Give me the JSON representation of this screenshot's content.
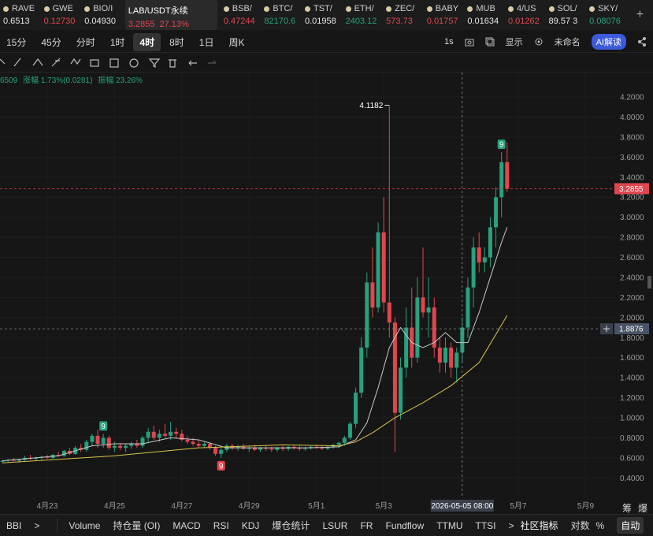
{
  "tickers": [
    {
      "symbol": "RAVE",
      "price": "0.6513",
      "color": "#e6e6e6"
    },
    {
      "symbol": "GWE",
      "price": "0.12730",
      "color": "#e0464f"
    },
    {
      "symbol": "BIO/I",
      "price": "0.04930",
      "color": "#e6e6e6"
    },
    {
      "symbol": "LAB/USDT永续",
      "price": "3.2855",
      "change": "27.13%",
      "color": "#e0464f"
    },
    {
      "symbol": "BSB/",
      "price": "0.47244",
      "color": "#e0464f"
    },
    {
      "symbol": "BTC/",
      "price": "82170.6",
      "color": "#27a17e"
    },
    {
      "symbol": "TST/",
      "price": "0.01958",
      "color": "#e6e6e6"
    },
    {
      "symbol": "ETH/",
      "price": "2403.12",
      "color": "#27a17e"
    },
    {
      "symbol": "ZEC/",
      "price": "573.73",
      "color": "#e0464f"
    },
    {
      "symbol": "BABY",
      "price": "0.01757",
      "color": "#e0464f"
    },
    {
      "symbol": "MUB",
      "price": "0.01634",
      "color": "#e6e6e6"
    },
    {
      "symbol": "4/US",
      "price": "0.01262",
      "color": "#e0464f"
    },
    {
      "symbol": "SOL/",
      "price": "89.57 3",
      "color": "#e6e6e6"
    },
    {
      "symbol": "SKY/",
      "price": "0.08076",
      "color": "#27a17e"
    }
  ],
  "add_tab": "+",
  "intervals": [
    "15分",
    "45分",
    "分时",
    "1时",
    "4时",
    "8时",
    "1日",
    "周K"
  ],
  "selected_interval": 4,
  "toolbar_right": {
    "speed": "1s",
    "display": "显示",
    "layout": "未命名",
    "ai": "AI解读"
  },
  "info": {
    "left": "6509",
    "change": "涨幅 1.73%(0.0281)",
    "amplitude": "振幅 23.26%"
  },
  "chart": {
    "up_color": "#27a17e",
    "down_color": "#e0464f",
    "ylim": [
      0.3,
      4.35
    ],
    "yticks": [
      {
        "value": 0.4,
        "label": "0.4000"
      },
      {
        "value": 0.6,
        "label": "0.6000"
      },
      {
        "value": 0.8,
        "label": "0.8000"
      },
      {
        "value": 1.0,
        "label": "1.0000"
      },
      {
        "value": 1.2,
        "label": "1.2000"
      },
      {
        "value": 1.4,
        "label": "1.4000"
      },
      {
        "value": 1.6,
        "label": "1.6000"
      },
      {
        "value": 1.8,
        "label": "1.8000"
      },
      {
        "value": 2.0,
        "label": "2.0000"
      },
      {
        "value": 2.2,
        "label": "2.2000"
      },
      {
        "value": 2.4,
        "label": "2.4000"
      },
      {
        "value": 2.6,
        "label": "2.6000"
      },
      {
        "value": 2.8,
        "label": "2.8000"
      },
      {
        "value": 3.0,
        "label": "3.0000"
      },
      {
        "value": 3.2,
        "label": "3.2000"
      },
      {
        "value": 3.4,
        "label": "3.4000"
      },
      {
        "value": 3.6,
        "label": "3.6000"
      },
      {
        "value": 3.8,
        "label": "3.8000"
      },
      {
        "value": 4.0,
        "label": "4.0000"
      },
      {
        "value": 4.2,
        "label": "4.2000"
      }
    ],
    "xticks": [
      {
        "value": 8,
        "label": "4月23"
      },
      {
        "value": 20,
        "label": "4月25"
      },
      {
        "value": 32,
        "label": "4月27"
      },
      {
        "value": 44,
        "label": "4月29"
      },
      {
        "value": 56,
        "label": "5月1"
      },
      {
        "value": 68,
        "label": "5月3"
      },
      {
        "value": 92,
        "label": "5月7"
      },
      {
        "value": 104,
        "label": "5月9"
      }
    ],
    "candles": {
      "open": [
        0.56,
        0.57,
        0.58,
        0.57,
        0.58,
        0.6,
        0.59,
        0.6,
        0.61,
        0.6,
        0.63,
        0.62,
        0.67,
        0.64,
        0.7,
        0.68,
        0.76,
        0.82,
        0.74,
        0.8,
        0.7,
        0.72,
        0.7,
        0.72,
        0.74,
        0.72,
        0.8,
        0.86,
        0.8,
        0.84,
        0.82,
        0.86,
        0.84,
        0.78,
        0.76,
        0.74,
        0.72,
        0.74,
        0.7,
        0.64,
        0.68,
        0.72,
        0.7,
        0.71,
        0.69,
        0.7,
        0.68,
        0.7,
        0.69,
        0.68,
        0.7,
        0.69,
        0.71,
        0.7,
        0.69,
        0.7,
        0.71,
        0.7,
        0.69,
        0.71,
        0.73,
        0.75,
        0.8,
        0.94,
        1.25,
        1.7,
        2.35,
        2.1,
        2.85,
        2.15,
        1.95,
        1.05,
        1.5,
        1.9,
        1.6,
        2.2,
        2.05,
        2.1,
        1.7,
        1.55,
        1.7,
        1.5,
        1.65,
        1.9,
        2.3,
        2.7,
        2.55,
        2.6,
        2.9,
        3.2,
        3.55
      ],
      "high": [
        0.58,
        0.59,
        0.6,
        0.59,
        0.62,
        0.63,
        0.61,
        0.62,
        0.63,
        0.64,
        0.66,
        0.68,
        0.7,
        0.72,
        0.74,
        0.78,
        0.84,
        0.88,
        0.84,
        0.82,
        0.76,
        0.75,
        0.74,
        0.76,
        0.78,
        0.82,
        0.9,
        0.92,
        0.88,
        0.94,
        0.96,
        0.9,
        0.88,
        0.82,
        0.8,
        0.78,
        0.76,
        0.76,
        0.72,
        0.7,
        0.74,
        0.74,
        0.73,
        0.74,
        0.72,
        0.73,
        0.71,
        0.72,
        0.71,
        0.71,
        0.72,
        0.72,
        0.73,
        0.72,
        0.71,
        0.72,
        0.73,
        0.72,
        0.72,
        0.74,
        0.76,
        0.82,
        0.96,
        1.3,
        1.8,
        2.45,
        2.7,
        2.95,
        3.2,
        4.1182,
        2.0,
        1.6,
        2.1,
        2.3,
        2.4,
        2.7,
        2.4,
        2.2,
        1.8,
        1.8,
        1.75,
        1.7,
        2.0,
        2.4,
        2.8,
        2.85,
        2.7,
        3.0,
        3.3,
        3.65,
        3.75
      ],
      "low": [
        0.55,
        0.56,
        0.57,
        0.55,
        0.57,
        0.58,
        0.57,
        0.58,
        0.59,
        0.59,
        0.61,
        0.61,
        0.63,
        0.63,
        0.66,
        0.66,
        0.72,
        0.7,
        0.7,
        0.68,
        0.66,
        0.68,
        0.66,
        0.69,
        0.7,
        0.7,
        0.76,
        0.78,
        0.76,
        0.8,
        0.78,
        0.8,
        0.76,
        0.74,
        0.72,
        0.7,
        0.7,
        0.68,
        0.62,
        0.6,
        0.66,
        0.68,
        0.67,
        0.68,
        0.66,
        0.67,
        0.66,
        0.67,
        0.66,
        0.66,
        0.67,
        0.67,
        0.68,
        0.67,
        0.67,
        0.68,
        0.69,
        0.68,
        0.68,
        0.69,
        0.7,
        0.72,
        0.78,
        0.9,
        1.2,
        1.6,
        2.0,
        2.05,
        2.05,
        1.8,
        0.66,
        0.98,
        1.4,
        1.5,
        1.55,
        2.0,
        1.8,
        1.6,
        1.45,
        1.45,
        1.4,
        1.35,
        1.55,
        1.8,
        2.1,
        2.45,
        2.45,
        2.5,
        2.7,
        3.0,
        3.25
      ],
      "close": [
        0.57,
        0.58,
        0.57,
        0.58,
        0.6,
        0.59,
        0.6,
        0.61,
        0.6,
        0.63,
        0.62,
        0.67,
        0.64,
        0.7,
        0.68,
        0.76,
        0.82,
        0.74,
        0.8,
        0.7,
        0.72,
        0.7,
        0.72,
        0.74,
        0.72,
        0.8,
        0.86,
        0.8,
        0.84,
        0.82,
        0.86,
        0.84,
        0.78,
        0.76,
        0.74,
        0.72,
        0.74,
        0.7,
        0.64,
        0.68,
        0.72,
        0.7,
        0.71,
        0.69,
        0.7,
        0.68,
        0.7,
        0.69,
        0.68,
        0.7,
        0.69,
        0.71,
        0.7,
        0.69,
        0.7,
        0.71,
        0.7,
        0.69,
        0.71,
        0.73,
        0.75,
        0.8,
        0.94,
        1.25,
        1.7,
        2.35,
        2.1,
        2.85,
        2.15,
        1.95,
        1.05,
        1.5,
        1.9,
        1.6,
        2.2,
        2.05,
        2.1,
        1.7,
        1.55,
        1.7,
        1.5,
        1.65,
        1.9,
        2.3,
        2.7,
        2.55,
        2.6,
        2.9,
        3.2,
        3.55,
        3.2855
      ]
    },
    "ma_lines": [
      {
        "color": "#c8c8c8",
        "x": [
          0,
          10,
          16,
          20,
          25,
          30,
          35,
          40,
          45,
          55,
          60,
          63,
          65,
          67,
          69,
          71,
          73,
          75,
          77,
          79,
          81,
          83,
          85,
          87,
          89,
          90
        ],
        "values": [
          0.57,
          0.62,
          0.72,
          0.74,
          0.74,
          0.8,
          0.78,
          0.7,
          0.7,
          0.7,
          0.71,
          0.78,
          0.95,
          1.3,
          1.7,
          1.9,
          1.75,
          1.7,
          1.75,
          1.85,
          1.75,
          1.75,
          2.05,
          2.4,
          2.75,
          2.9
        ]
      },
      {
        "color": "#d6c64a",
        "x": [
          0,
          20,
          35,
          50,
          60,
          63,
          66,
          70,
          75,
          80,
          85,
          90
        ],
        "values": [
          0.55,
          0.62,
          0.7,
          0.73,
          0.72,
          0.76,
          0.85,
          1.0,
          1.15,
          1.32,
          1.55,
          2.02
        ]
      }
    ],
    "high_marker": {
      "index": 69,
      "value": 4.1182
    },
    "last_price": {
      "value": 3.2855,
      "color": "#e0464f"
    },
    "crosshair": {
      "index": 82,
      "time": "2026-05-05 08:00",
      "price": 1.8876
    },
    "td_markers": [
      {
        "index": 18,
        "count": 9,
        "side": "above",
        "color": "#27a17e"
      },
      {
        "index": 39,
        "count": 9,
        "side": "below",
        "color": "#e0464f"
      },
      {
        "index": 89,
        "count": 9,
        "side": "above",
        "color": "#27a17e"
      }
    ]
  },
  "axis_corner": [
    "筹",
    "爆"
  ],
  "bottom_bar": {
    "left": [
      "BBI",
      ">"
    ],
    "indicators": [
      "Volume",
      "持仓量 (OI)",
      "MACD",
      "RSI",
      "KDJ",
      "爆仓统计",
      "LSUR",
      "FR",
      "Fundflow",
      "TTMU",
      "TTSI"
    ],
    "more": ">",
    "community": "社区指标",
    "log": "对数",
    "percent": "%",
    "auto": "自动"
  }
}
